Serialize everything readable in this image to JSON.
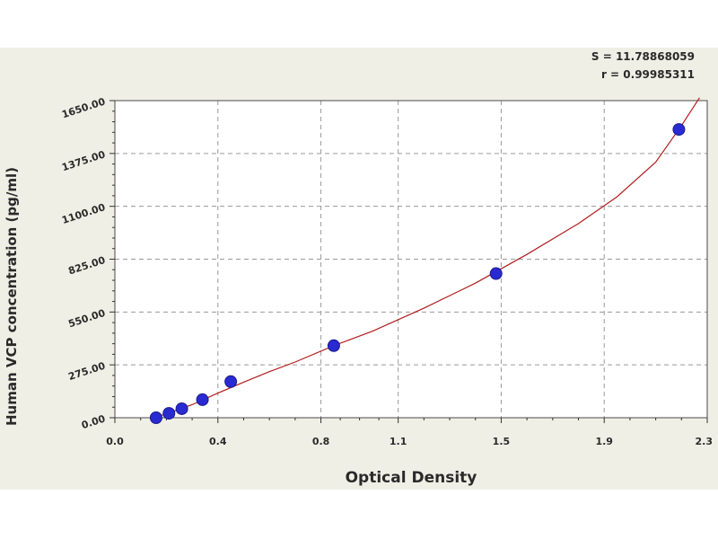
{
  "chart_data": {
    "type": "scatter",
    "xlabel": "Optical Density",
    "ylabel": "Human VCP concentration (pg/ml)",
    "stats": {
      "s": "S = 11.78868059",
      "r": "r = 0.99985311"
    },
    "xlim": [
      0.0,
      2.3
    ],
    "ylim": [
      0,
      1650
    ],
    "x_ticks": [
      0.0,
      0.4,
      0.8,
      1.1,
      1.5,
      1.9,
      2.3
    ],
    "x_tick_labels": [
      "0.0",
      "0.4",
      "0.8",
      "1.1",
      "1.5",
      "1.9",
      "2.3"
    ],
    "y_ticks": [
      0,
      275,
      550,
      825,
      1100,
      1375,
      1650
    ],
    "y_tick_labels": [
      "0.00",
      "275.00",
      "550.00",
      "825.00",
      "1100.00",
      "1375.00",
      "1650.00"
    ],
    "grid": true,
    "points": [
      {
        "x": 0.16,
        "y": 0
      },
      {
        "x": 0.21,
        "y": 23
      },
      {
        "x": 0.26,
        "y": 47
      },
      {
        "x": 0.34,
        "y": 94
      },
      {
        "x": 0.45,
        "y": 188
      },
      {
        "x": 0.85,
        "y": 375
      },
      {
        "x": 1.48,
        "y": 750
      },
      {
        "x": 2.19,
        "y": 1500
      }
    ],
    "fit_curve": [
      {
        "x": 0.15,
        "y": 0
      },
      {
        "x": 0.2,
        "y": 20
      },
      {
        "x": 0.3,
        "y": 68
      },
      {
        "x": 0.4,
        "y": 128
      },
      {
        "x": 0.5,
        "y": 185
      },
      {
        "x": 0.6,
        "y": 240
      },
      {
        "x": 0.7,
        "y": 290
      },
      {
        "x": 0.85,
        "y": 375
      },
      {
        "x": 1.0,
        "y": 450
      },
      {
        "x": 1.2,
        "y": 570
      },
      {
        "x": 1.4,
        "y": 700
      },
      {
        "x": 1.6,
        "y": 850
      },
      {
        "x": 1.8,
        "y": 1010
      },
      {
        "x": 1.95,
        "y": 1150
      },
      {
        "x": 2.1,
        "y": 1330
      },
      {
        "x": 2.2,
        "y": 1520
      },
      {
        "x": 2.27,
        "y": 1665
      }
    ],
    "colors": {
      "marker": "#2a2ad2",
      "curve": "#b11e1e",
      "grid": "#9a9a9a",
      "plot_bg": "#ffffff",
      "frame_bg": "#f0efe6"
    }
  }
}
